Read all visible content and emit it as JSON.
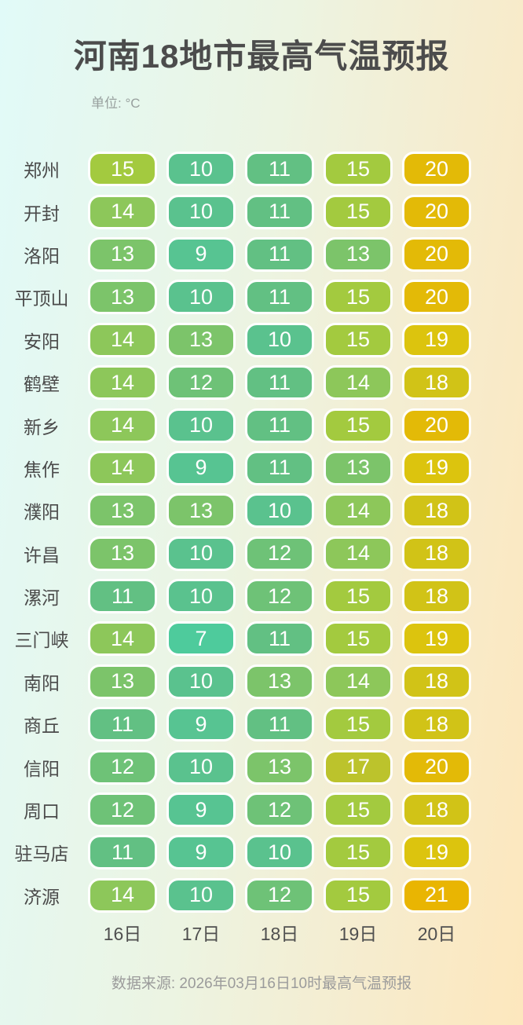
{
  "title": "河南18地市最高气温预报",
  "unit_label": "单位: °C",
  "footer": "数据来源: 2026年03月16日10时最高气温预报",
  "chart_data": {
    "type": "heatmap",
    "title": "河南18地市最高气温预报",
    "unit": "°C",
    "x_categories": [
      "16日",
      "17日",
      "18日",
      "19日",
      "20日"
    ],
    "y_categories": [
      "郑州",
      "开封",
      "洛阳",
      "平顶山",
      "安阳",
      "鹤壁",
      "新乡",
      "焦作",
      "濮阳",
      "许昌",
      "漯河",
      "三门峡",
      "南阳",
      "商丘",
      "信阳",
      "周口",
      "驻马店",
      "济源"
    ],
    "values": [
      [
        15,
        10,
        11,
        15,
        20
      ],
      [
        14,
        10,
        11,
        15,
        20
      ],
      [
        13,
        9,
        11,
        13,
        20
      ],
      [
        13,
        10,
        11,
        15,
        20
      ],
      [
        14,
        13,
        10,
        15,
        19
      ],
      [
        14,
        12,
        11,
        14,
        18
      ],
      [
        14,
        10,
        11,
        15,
        20
      ],
      [
        14,
        9,
        11,
        13,
        19
      ],
      [
        13,
        13,
        10,
        14,
        18
      ],
      [
        13,
        10,
        12,
        14,
        18
      ],
      [
        11,
        10,
        12,
        15,
        18
      ],
      [
        14,
        7,
        11,
        15,
        19
      ],
      [
        13,
        10,
        13,
        14,
        18
      ],
      [
        11,
        9,
        11,
        15,
        18
      ],
      [
        12,
        10,
        13,
        17,
        20
      ],
      [
        12,
        9,
        12,
        15,
        18
      ],
      [
        11,
        9,
        10,
        15,
        19
      ],
      [
        14,
        10,
        12,
        15,
        21
      ]
    ],
    "source": "数据来源: 2026年03月16日10时最高气温预报",
    "value_range": [
      7,
      21
    ],
    "legend_position": "none",
    "grid": false
  },
  "temp_colors": {
    "7": "#4ecb9c",
    "9": "#57c492",
    "10": "#5ac28e",
    "11": "#62c083",
    "12": "#6ec277",
    "13": "#7cc46a",
    "14": "#8dc75a",
    "15": "#a3ca3f",
    "17": "#bcc32c",
    "18": "#d1c317",
    "19": "#dcc40e",
    "20": "#e3ba07",
    "21": "#e9b502"
  },
  "style_colors": {
    "background_left": "#e1faf8",
    "background_right": "#fde7bd",
    "title_text": "#4c4c4c",
    "pill_text": "#ffffff",
    "pill_border": "#ffffff",
    "footer_text": "#9b9b9b"
  }
}
